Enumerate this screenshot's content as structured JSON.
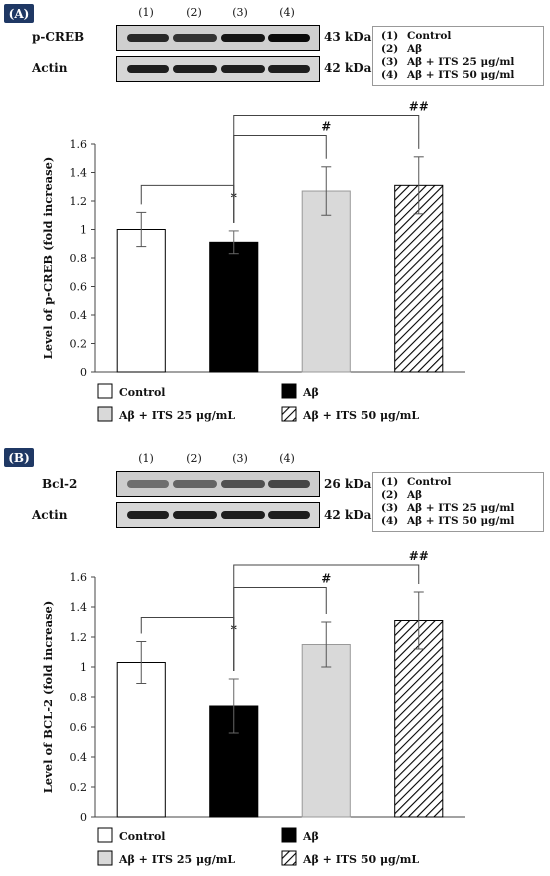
{
  "chart_data": [
    {
      "panel": "(A)",
      "type": "bar",
      "categories": [
        "Control",
        "Aβ",
        "Aβ + ITS 25 μg/mL",
        "Aβ + ITS 50 μg/mL"
      ],
      "values": [
        1.0,
        0.91,
        1.27,
        1.31
      ],
      "errors": [
        0.12,
        0.08,
        0.17,
        0.2
      ],
      "ylabel": "Level of p-CREB (fold increase)",
      "xlabel": "",
      "ylim": [
        0,
        1.6
      ],
      "yticks": [
        "0",
        "0.2",
        "0.4",
        "0.6",
        "0.8",
        "1",
        "1.2",
        "1.4",
        "1.6"
      ],
      "ytick_values": [
        0,
        0.2,
        0.4,
        0.6,
        0.8,
        1.0,
        1.2,
        1.4,
        1.6
      ],
      "fills": [
        "#ffffff",
        "#000000",
        "#d9d9d9",
        "hatch"
      ],
      "significance": [
        {
          "from": 0,
          "to": 1,
          "label": "*",
          "level": 1.31
        },
        {
          "from": 1,
          "to": 2,
          "label": "#",
          "level": 1.66
        },
        {
          "from": 1,
          "to": 3,
          "label": "##",
          "level": 1.8
        }
      ],
      "legend": [
        "Control",
        "Aβ",
        "Aβ + ITS 25 μg/mL",
        "Aβ + ITS 50 μg/mL"
      ],
      "legend_placement": "bottom",
      "grid": false,
      "blot": {
        "lanes": [
          "(1)",
          "(2)",
          "(3)",
          "(4)"
        ],
        "rows": [
          {
            "label": "p-CREB",
            "kda": "43 kDa",
            "intensity": [
              0.8,
              0.75,
              0.9,
              0.95
            ]
          },
          {
            "label": "Actin",
            "kda": "42 kDa",
            "intensity": [
              0.85,
              0.85,
              0.85,
              0.85
            ]
          }
        ],
        "key": [
          {
            "num": "(1)",
            "text": "Control"
          },
          {
            "num": "(2)",
            "text": "Aβ"
          },
          {
            "num": "(3)",
            "text": "Aβ + ITS 25 μg/ml"
          },
          {
            "num": "(4)",
            "text": "Aβ + ITS 50 μg/ml"
          }
        ]
      }
    },
    {
      "panel": "(B)",
      "type": "bar",
      "categories": [
        "Control",
        "Aβ",
        "Aβ + ITS 25 μg/mL",
        "Aβ + ITS 50 μg/mL"
      ],
      "values": [
        1.03,
        0.74,
        1.15,
        1.31
      ],
      "errors": [
        0.14,
        0.18,
        0.15,
        0.19
      ],
      "ylabel": "Level of BCL-2 (fold increase)",
      "xlabel": "",
      "ylim": [
        0,
        1.6
      ],
      "yticks": [
        "0",
        "0.2",
        "0.4",
        "0.6",
        "0.8",
        "1",
        "1.2",
        "1.4",
        "1.6"
      ],
      "ytick_values": [
        0,
        0.2,
        0.4,
        0.6,
        0.8,
        1.0,
        1.2,
        1.4,
        1.6
      ],
      "fills": [
        "#ffffff",
        "#000000",
        "#d9d9d9",
        "hatch"
      ],
      "significance": [
        {
          "from": 0,
          "to": 1,
          "label": "*",
          "level": 1.33
        },
        {
          "from": 1,
          "to": 2,
          "label": "#",
          "level": 1.53
        },
        {
          "from": 1,
          "to": 3,
          "label": "##",
          "level": 1.68
        }
      ],
      "legend": [
        "Control",
        "Aβ",
        "Aβ + ITS 25 μg/mL",
        "Aβ + ITS 50 μg/mL"
      ],
      "legend_placement": "bottom",
      "grid": false,
      "blot": {
        "lanes": [
          "(1)",
          "(2)",
          "(3)",
          "(4)"
        ],
        "rows": [
          {
            "label": "Bcl-2",
            "kda": "26 kDa",
            "intensity": [
              0.45,
              0.5,
              0.6,
              0.65
            ]
          },
          {
            "label": "Actin",
            "kda": "42 kDa",
            "intensity": [
              0.85,
              0.85,
              0.85,
              0.85
            ]
          }
        ],
        "key": [
          {
            "num": "(1)",
            "text": "Control"
          },
          {
            "num": "(2)",
            "text": "Aβ"
          },
          {
            "num": "(3)",
            "text": "Aβ + ITS 25 μg/ml"
          },
          {
            "num": "(4)",
            "text": "Aβ + ITS 50 μg/ml"
          }
        ]
      }
    }
  ]
}
